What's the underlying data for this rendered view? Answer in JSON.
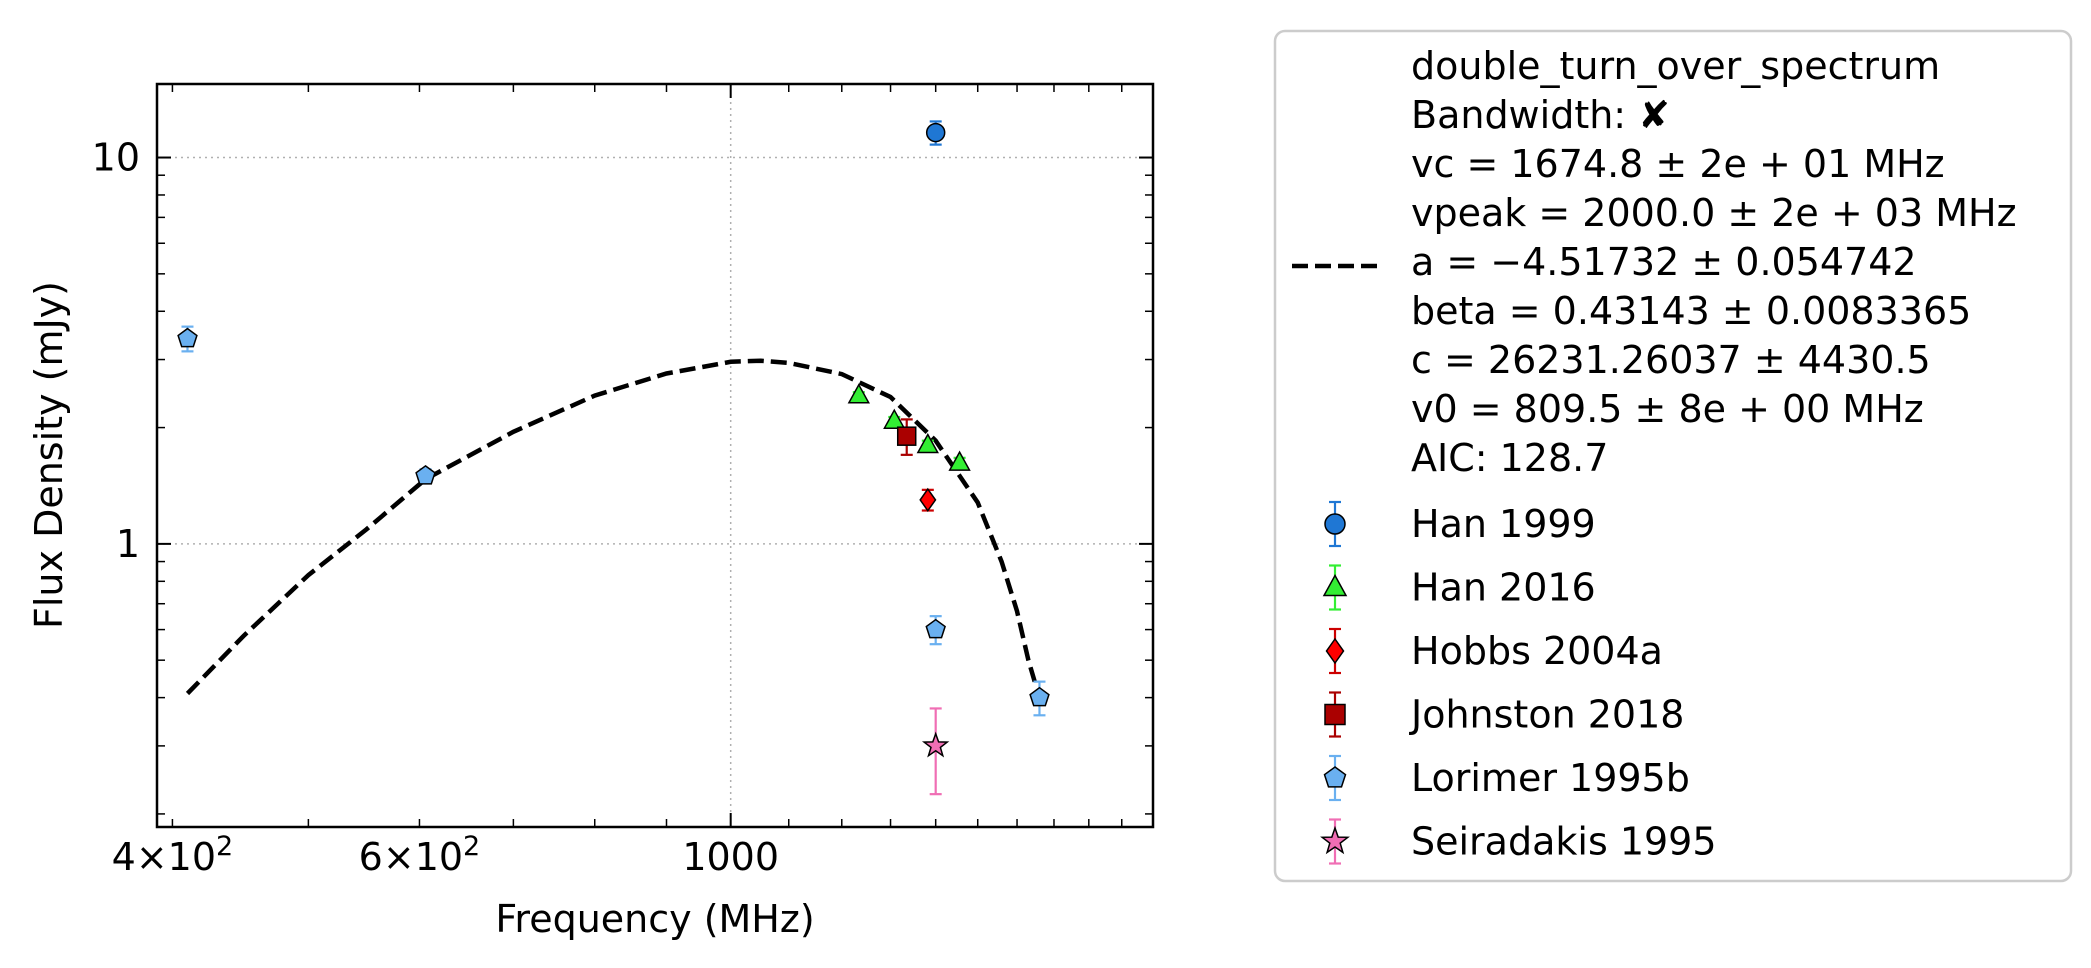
{
  "chart_data": {
    "type": "scatter",
    "xscale": "log",
    "yscale": "log",
    "xlabel": "Frequency (MHz)",
    "ylabel": "Flux Density (mJy)",
    "xlim": [
      390,
      2000
    ],
    "ylim": [
      0.185,
      15.5
    ],
    "grid": true,
    "legend_position": "outside-right",
    "x_tick_labels": [
      {
        "x": 400,
        "mantissa": "4",
        "exp": "2"
      },
      {
        "x": 600,
        "mantissa": "6",
        "exp": "2"
      },
      {
        "x": 1000,
        "text": "1000"
      }
    ],
    "y_tick_labels": [
      {
        "y": 1,
        "text": "1"
      },
      {
        "y": 10,
        "text": "10"
      }
    ],
    "fit": {
      "lines": [
        "double_turn_over_spectrum",
        "Bandwidth: ✘",
        "vc = 1674.8 ± 2e + 01 MHz",
        "vpeak = 2000.0 ± 2e + 03 MHz",
        "a = −4.51732 ± 0.054742",
        "beta = 0.43143 ± 0.0083365",
        "c = 26231.26037 ± 4430.5",
        "v0 = 809.5 ± 8e + 00 MHz",
        "AIC: 128.7"
      ],
      "curve": [
        [
          410,
          0.41
        ],
        [
          450,
          0.58
        ],
        [
          500,
          0.83
        ],
        [
          550,
          1.09
        ],
        [
          606,
          1.47
        ],
        [
          700,
          1.95
        ],
        [
          800,
          2.42
        ],
        [
          900,
          2.76
        ],
        [
          1000,
          2.96
        ],
        [
          1050,
          2.98
        ],
        [
          1100,
          2.94
        ],
        [
          1200,
          2.75
        ],
        [
          1300,
          2.4
        ],
        [
          1400,
          1.85
        ],
        [
          1500,
          1.28
        ],
        [
          1560,
          0.9
        ],
        [
          1600,
          0.67
        ],
        [
          1630,
          0.5
        ],
        [
          1647,
          0.44
        ]
      ],
      "color": "#000000"
    },
    "series": [
      {
        "name": "Han 1999",
        "marker": "circle",
        "color": "#1f77d4",
        "ecolor": "#1f77d4",
        "points": [
          {
            "x": 1400,
            "y": 11.6,
            "err": 0.8
          }
        ]
      },
      {
        "name": "Han 2016",
        "marker": "triangle",
        "color": "#33ee33",
        "ecolor": "#33ee33",
        "points": [
          {
            "x": 1234,
            "y": 2.42,
            "err": 0.05
          },
          {
            "x": 1308,
            "y": 2.08,
            "err": 0.05
          },
          {
            "x": 1382,
            "y": 1.8,
            "err": 0.05
          },
          {
            "x": 1456,
            "y": 1.62,
            "err": 0.05
          }
        ]
      },
      {
        "name": "Hobbs 2004a",
        "marker": "diamond",
        "color": "#ff0000",
        "ecolor": "#cc0000",
        "points": [
          {
            "x": 1382,
            "y": 1.3,
            "err": 0.08
          }
        ]
      },
      {
        "name": "Johnston 2018",
        "marker": "square",
        "color": "#aa0000",
        "ecolor": "#aa0000",
        "points": [
          {
            "x": 1335,
            "y": 1.9,
            "err": 0.2
          }
        ]
      },
      {
        "name": "Lorimer 1995b",
        "marker": "pentagon",
        "color": "#6ab0f0",
        "ecolor": "#6ab0f0",
        "points": [
          {
            "x": 410,
            "y": 3.4,
            "err": 0.25
          },
          {
            "x": 606,
            "y": 1.5,
            "err": 0.06
          },
          {
            "x": 1400,
            "y": 0.6,
            "err": 0.05
          },
          {
            "x": 1660,
            "y": 0.4,
            "err": 0.04
          }
        ]
      },
      {
        "name": "Seiradakis 1995",
        "marker": "star",
        "color": "#f06eb4",
        "ecolor": "#f06eb4",
        "points": [
          {
            "x": 1400,
            "y": 0.3,
            "err": 0.075
          }
        ]
      }
    ]
  }
}
